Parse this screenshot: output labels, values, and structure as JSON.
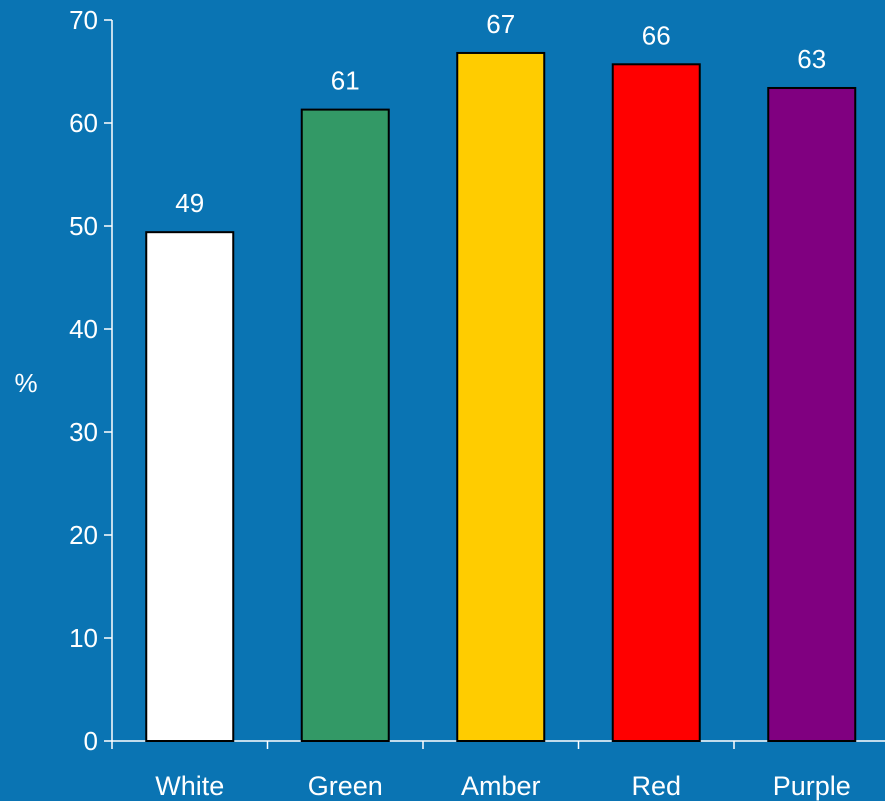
{
  "chart_data": {
    "type": "bar",
    "categories": [
      "White",
      "Green",
      "Amber",
      "Red",
      "Purple"
    ],
    "values": [
      49.4,
      61.3,
      66.8,
      65.7,
      63.4
    ],
    "data_labels": [
      "49",
      "61",
      "67",
      "66",
      "63"
    ],
    "bar_colors": [
      "#ffffff",
      "#339966",
      "#ffcc00",
      "#ff0000",
      "#800080"
    ],
    "ylabel": "%",
    "xlabel": "",
    "title": "",
    "ylim": [
      0,
      70
    ],
    "yticks": [
      0,
      10,
      20,
      30,
      40,
      50,
      60,
      70
    ],
    "grid": false,
    "legend": "none"
  },
  "colors": {
    "background": "#0a74b3",
    "axis": "#ffffff",
    "text": "#ffffff",
    "bar_outline": "#000000"
  }
}
